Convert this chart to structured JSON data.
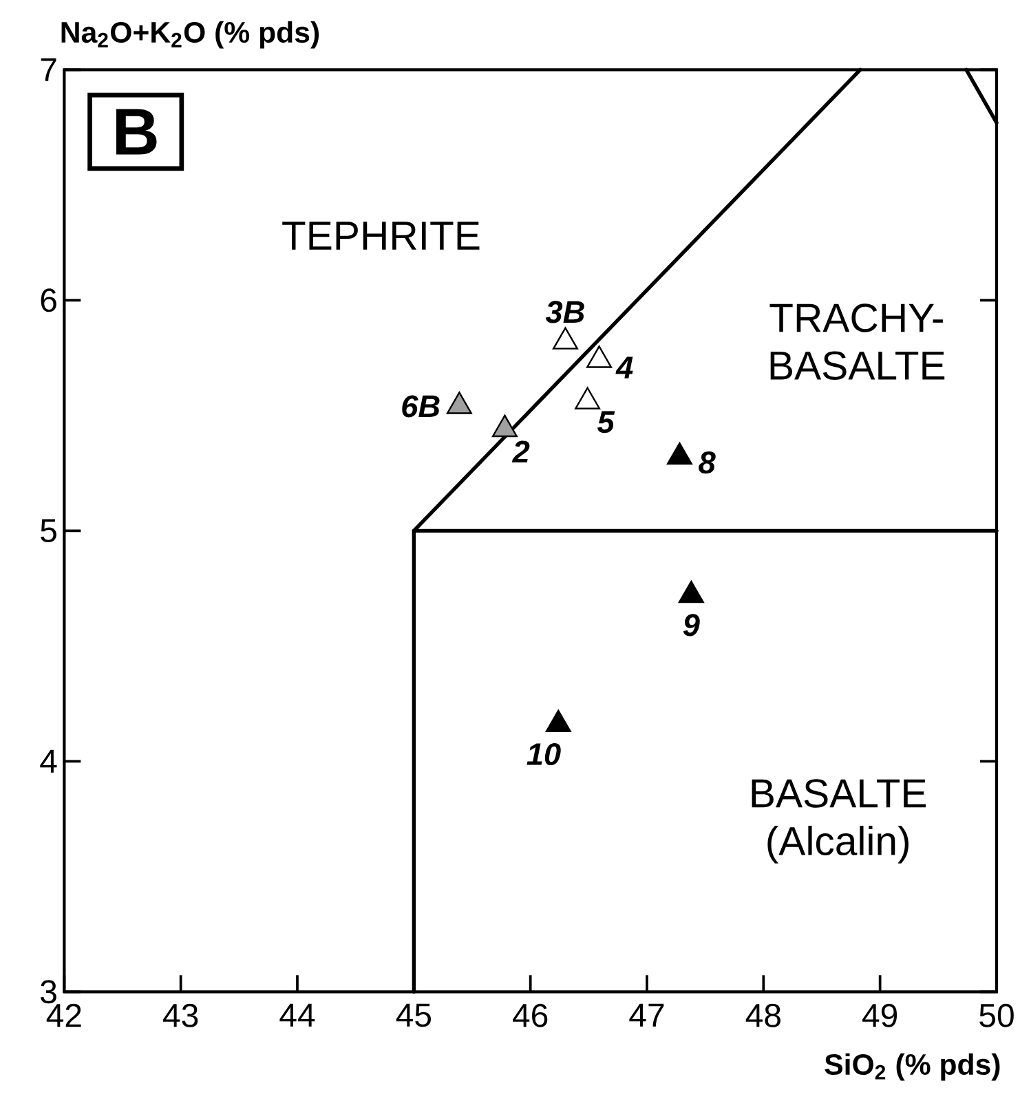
{
  "chart_data": {
    "type": "scatter",
    "xlabel": "SiO$_{2}$ (% pds)",
    "ylabel": "Na$_{2}$O+K$_{2}$O (% pds)",
    "xlim": [
      42,
      50
    ],
    "ylim": [
      3,
      7
    ],
    "xticks": [
      42,
      43,
      44,
      45,
      46,
      47,
      48,
      49,
      50
    ],
    "yticks": [
      3,
      4,
      5,
      6,
      7
    ],
    "grid": false,
    "series": [
      {
        "name": "3B",
        "marker": "triangle",
        "color": "#ffffff",
        "x": [
          46.3
        ],
        "values": [
          5.82
        ]
      },
      {
        "name": "4",
        "marker": "triangle",
        "color": "#ffffff",
        "x": [
          46.59
        ],
        "values": [
          5.74
        ]
      },
      {
        "name": "5",
        "marker": "triangle",
        "color": "#ffffff",
        "x": [
          46.49
        ],
        "values": [
          5.56
        ]
      },
      {
        "name": "6B",
        "marker": "triangle",
        "color": "#a0a0a0",
        "x": [
          45.39
        ],
        "values": [
          5.54
        ]
      },
      {
        "name": "2",
        "marker": "triangle",
        "color": "#a0a0a0",
        "x": [
          45.78
        ],
        "values": [
          5.44
        ]
      },
      {
        "name": "8",
        "marker": "triangle",
        "color": "#000000",
        "x": [
          47.28
        ],
        "values": [
          5.32
        ]
      },
      {
        "name": "9",
        "marker": "triangle",
        "color": "#000000",
        "x": [
          47.38
        ],
        "values": [
          4.72
        ]
      },
      {
        "name": "10",
        "marker": "triangle",
        "color": "#000000",
        "x": [
          46.24
        ],
        "values": [
          4.16
        ]
      },
      {
        "type": "line",
        "color": "#000000",
        "x": [
          45,
          45,
          48.83
        ],
        "values": [
          3,
          5,
          7
        ]
      },
      {
        "type": "line",
        "color": "#000000",
        "x": [
          45,
          50
        ],
        "values": [
          5,
          5
        ]
      },
      {
        "type": "line",
        "color": "#000000",
        "x": [
          49.74,
          50
        ],
        "values": [
          7,
          6.77
        ]
      }
    ],
    "annotations": [
      "B",
      "TEPHRITE",
      "TRACHY-BASALTE",
      "BASALTE (Alcalin)"
    ]
  }
}
